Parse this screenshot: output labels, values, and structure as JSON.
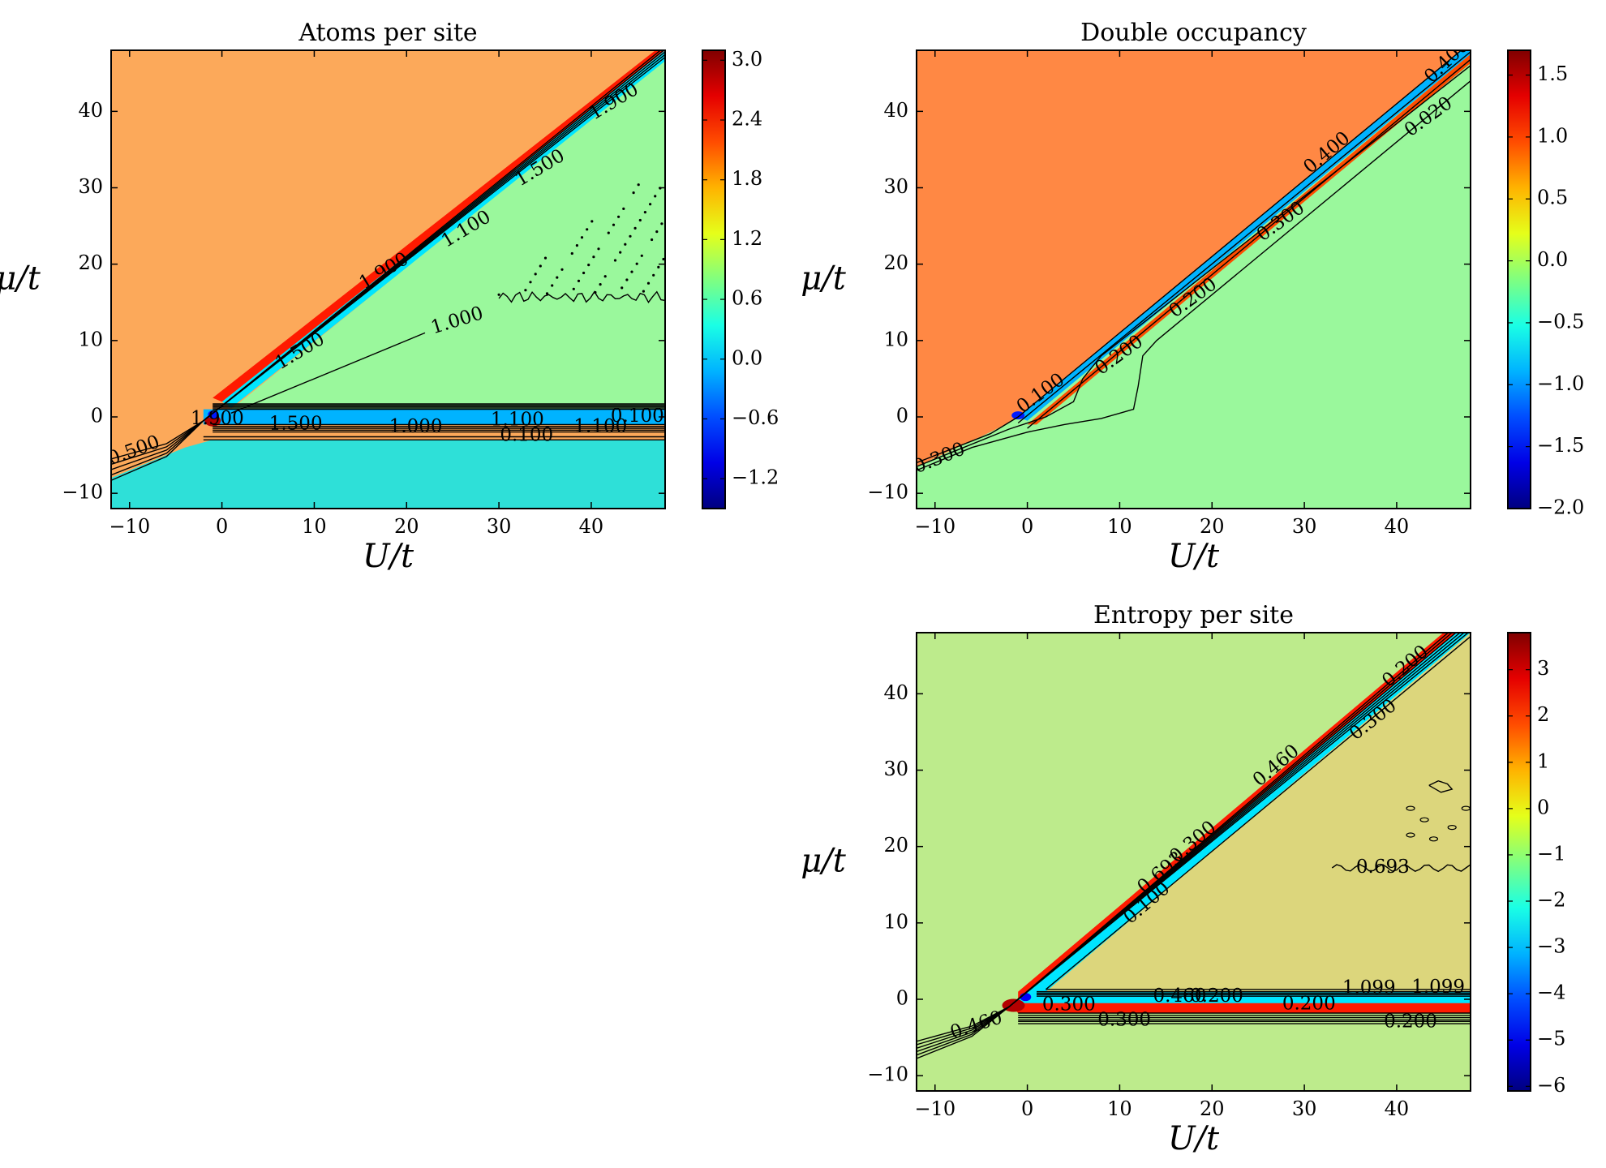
{
  "chart_data": [
    {
      "type": "heatmap",
      "title": "Atoms per site",
      "xlabel": "U/t",
      "ylabel": "μ/t",
      "xlim": [
        -12,
        48
      ],
      "ylim": [
        -12,
        48
      ],
      "xticks": [
        "−10",
        "0",
        "10",
        "20",
        "30",
        "40"
      ],
      "yticks": [
        "−10",
        "0",
        "10",
        "20",
        "30",
        "40"
      ],
      "colorbar": {
        "range": [
          -1.5,
          3.1
        ],
        "ticks": [
          "3.0",
          "2.4",
          "1.8",
          "1.2",
          "0.6",
          "0.0",
          "−0.6",
          "−1.2"
        ],
        "tick_values": [
          3.0,
          2.4,
          1.8,
          1.2,
          0.6,
          0.0,
          -0.6,
          -1.2
        ]
      },
      "regions": [
        {
          "name": "upper",
          "value": 2.0,
          "color": "#fca95a"
        },
        {
          "name": "wedge",
          "value": 1.0,
          "color": "#9af89c"
        },
        {
          "name": "lower",
          "value": 0.0,
          "color": "#2ee0d8"
        }
      ],
      "contour_labels": [
        "1.900",
        "1.500",
        "1.100",
        "1.900",
        "1.000",
        "1.500",
        "1.900",
        "1.500",
        "1.000",
        "1.100",
        "1.100",
        "0.100",
        "0.100",
        "0.500"
      ],
      "grid": false
    },
    {
      "type": "heatmap",
      "title": "Double occupancy",
      "xlabel": "U/t",
      "ylabel": "μ/t",
      "xlim": [
        -12,
        48
      ],
      "ylim": [
        -12,
        48
      ],
      "xticks": [
        "−10",
        "0",
        "10",
        "20",
        "30",
        "40"
      ],
      "yticks": [
        "−10",
        "0",
        "10",
        "20",
        "30",
        "40"
      ],
      "colorbar": {
        "range": [
          -2.0,
          1.7
        ],
        "ticks": [
          "1.5",
          "1.0",
          "0.5",
          "0.0",
          "−0.5",
          "−1.0",
          "−1.5",
          "−2.0"
        ],
        "tick_values": [
          1.5,
          1.0,
          0.5,
          0.0,
          -0.5,
          -1.0,
          -1.5,
          -2.0
        ]
      },
      "regions": [
        {
          "name": "upper",
          "value": 1.0,
          "color": "#ff8844"
        },
        {
          "name": "lower",
          "value": 0.0,
          "color": "#9af89c"
        }
      ],
      "contour_labels": [
        "0.400",
        "0.400",
        "0.020",
        "0.300",
        "0.200",
        "0.200",
        "0.100",
        "0.300"
      ],
      "grid": false
    },
    {
      "type": "heatmap",
      "title": "Entropy per site",
      "xlabel": "U/t",
      "ylabel": "μ/t",
      "xlim": [
        -12,
        48
      ],
      "ylim": [
        -12,
        48
      ],
      "xticks": [
        "−10",
        "0",
        "10",
        "20",
        "30",
        "40"
      ],
      "yticks": [
        "−10",
        "0",
        "10",
        "20",
        "30",
        "40"
      ],
      "colorbar": {
        "range": [
          -6.1,
          3.8
        ],
        "ticks": [
          "3",
          "2",
          "1",
          "0",
          "−1",
          "−2",
          "−3",
          "−4",
          "−5",
          "−6"
        ],
        "tick_values": [
          3,
          2,
          1,
          0,
          -1,
          -2,
          -3,
          -4,
          -5,
          -6
        ]
      },
      "regions": [
        {
          "name": "outer",
          "value": 0.0,
          "color": "#bdeb8c"
        },
        {
          "name": "wedge",
          "value": 0.693,
          "color": "#dcd67c"
        }
      ],
      "contour_labels": [
        "0.200",
        "0.300",
        "0.460",
        "0.300",
        "0.693",
        "0.100",
        "0.693",
        "0.460",
        "0.200",
        "0.300",
        "0.200",
        "1.099",
        "1.099",
        "0.300",
        "0.200",
        "0.460"
      ],
      "grid": false
    }
  ]
}
